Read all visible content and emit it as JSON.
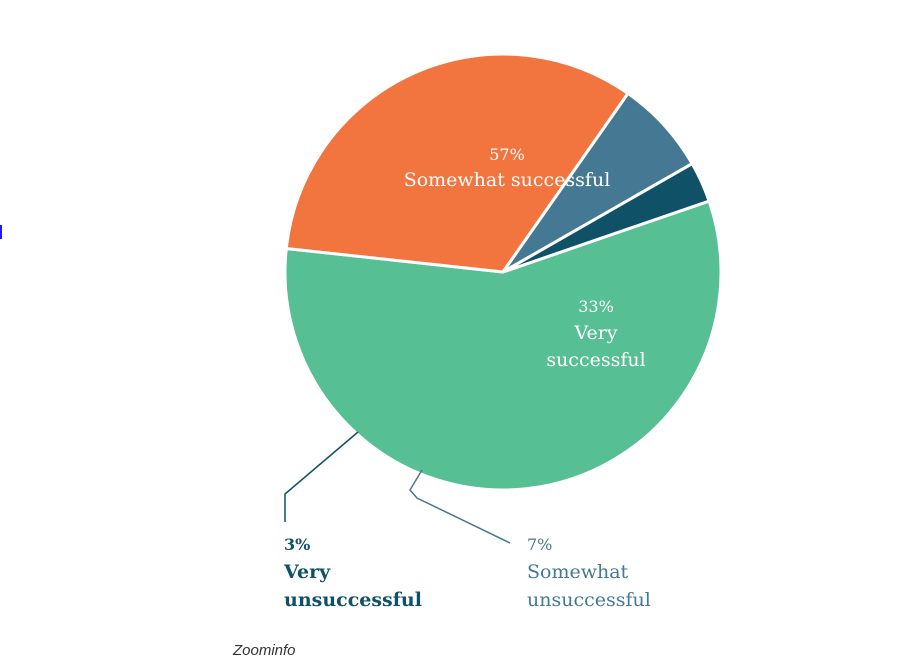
{
  "chart_data": {
    "type": "pie",
    "title": "",
    "slices": [
      {
        "label": "Somewhat successful",
        "value": 57,
        "value_label": "57%",
        "color": "#56bf94"
      },
      {
        "label": "Very successful",
        "value": 33,
        "value_label": "33%",
        "color": "#f2743e"
      },
      {
        "label": "Somewhat unsuccessful",
        "value": 7,
        "value_label": "7%",
        "color": "#457993"
      },
      {
        "label": "Very unsuccessful",
        "value": 3,
        "value_label": "3%",
        "color": "#0f5167"
      }
    ]
  },
  "source": "Zoominfo"
}
